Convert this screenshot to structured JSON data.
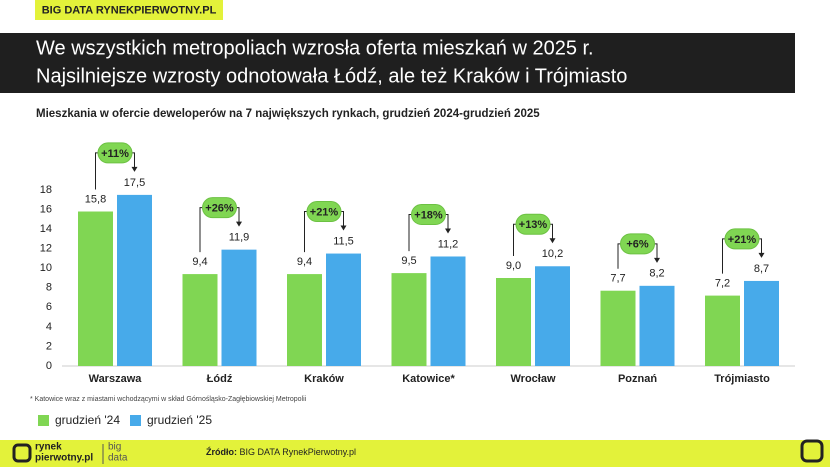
{
  "header": {
    "tag": "BIG DATA RYNEKPIERWOTNY.PL",
    "headline": [
      "We wszystkich metropoliach wzrosła oferta mieszkań w 2025 r.",
      "Najsilniejsze wzrosty odnotowała Łódź, ale też Kraków i Trójmiasto"
    ]
  },
  "chart_data": {
    "type": "bar",
    "title": "Mieszkania w ofercie deweloperów na 7 największych rynkach, grudzień 2024-grudzień 2025",
    "categories": [
      "Warszawa",
      "Łódź",
      "Kraków",
      "Katowice*",
      "Wrocław",
      "Poznań",
      "Trójmiasto"
    ],
    "series": [
      {
        "name": "grudzień '24",
        "color": "#80d653",
        "values": [
          15.8,
          9.4,
          9.4,
          9.5,
          9.0,
          7.7,
          7.2
        ],
        "value_labels": [
          "15,8",
          "9,4",
          "9,4",
          "9,5",
          "9,0",
          "7,7",
          "7,2"
        ]
      },
      {
        "name": "grudzień '25",
        "color": "#47aaea",
        "values": [
          17.5,
          11.9,
          11.5,
          11.2,
          10.2,
          8.2,
          8.7
        ],
        "value_labels": [
          "17,5",
          "11,9",
          "11,5",
          "11,2",
          "10,2",
          "8,2",
          "8,7"
        ]
      }
    ],
    "change_labels": [
      "+11%",
      "+26%",
      "+21%",
      "+18%",
      "+13%",
      "+6%",
      "+21%"
    ],
    "ylim": [
      0,
      18
    ],
    "yticks": [
      0,
      2,
      4,
      6,
      8,
      10,
      12,
      14,
      16,
      18
    ],
    "footnote": "* Katowice wraz z miastami wchodzącymi w skład Górnośląsko-Zagłębiowskiej Metropolii",
    "legend": "bottom-left"
  },
  "footer": {
    "logo": [
      "rynek",
      "pierwotny.pl"
    ],
    "brand": [
      "big",
      "data"
    ],
    "source_label": "Źródło:",
    "source": "BIG DATA RynekPierwotny.pl"
  }
}
